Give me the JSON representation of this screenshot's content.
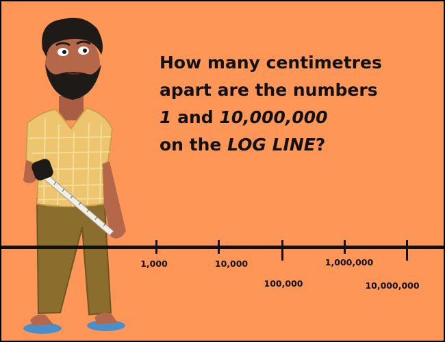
{
  "question": {
    "line1": "How many centimetres",
    "line2": "apart are the numbers",
    "line3_num1": "1",
    "line3_and": " and ",
    "line3_num2": "10,000,000",
    "line4_pre": "on the ",
    "line4_term": "LOG LINE",
    "line4_post": "?"
  },
  "number_line": {
    "labels": [
      "1,000",
      "10,000",
      "100,000",
      "1,000,000",
      "10,000,000"
    ]
  },
  "illustration": {
    "subject": "man-holding-tape-measure",
    "colors": {
      "background": "#fd9656",
      "shirt": "#ecc56e",
      "pants": "#8b6d2d",
      "skin": "#b5674a",
      "hair": "#1e1a17",
      "tape": "#f2efe6",
      "flip_flops": "#4a8fc9"
    }
  }
}
